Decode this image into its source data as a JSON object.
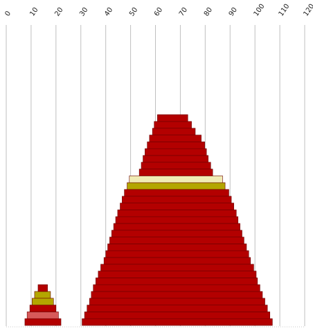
{
  "chart_data": {
    "type": "bar",
    "orientation": "horizontal-stacked-profile",
    "title": "",
    "xlabel": "",
    "ylabel": "",
    "x_ticks": [
      "0",
      "10",
      "20",
      "30",
      "40",
      "50",
      "60",
      "70",
      "80",
      "90",
      "100",
      "110",
      "120"
    ],
    "xlim": [
      0,
      120
    ],
    "grid": true,
    "legend": "none",
    "colors": {
      "red": "#b30000",
      "light_red": "#d75a5a",
      "olive": "#b3a600",
      "cream": "#f0ebb4",
      "edge": "#6a0000",
      "grid": "#bfbfbf"
    },
    "stacks": [
      {
        "name": "",
        "bars": [
          {
            "start": 7.5,
            "end": 22.0,
            "color": "red"
          },
          {
            "start": 8.4,
            "end": 21.0,
            "color": "light_red"
          },
          {
            "start": 9.5,
            "end": 20.0,
            "color": "red"
          },
          {
            "start": 10.4,
            "end": 19.0,
            "color": "olive"
          },
          {
            "start": 11.4,
            "end": 17.8,
            "color": "olive"
          },
          {
            "start": 12.8,
            "end": 16.6,
            "color": "red"
          }
        ]
      },
      {
        "name": "",
        "bars": [
          {
            "start": 30.5,
            "end": 107.0,
            "color": "red"
          },
          {
            "start": 31.5,
            "end": 106.0,
            "color": "red"
          },
          {
            "start": 32.5,
            "end": 105.0,
            "color": "red"
          },
          {
            "start": 33.5,
            "end": 104.0,
            "color": "red"
          },
          {
            "start": 34.2,
            "end": 103.0,
            "color": "red"
          },
          {
            "start": 35.0,
            "end": 102.0,
            "color": "red"
          },
          {
            "start": 36.0,
            "end": 101.0,
            "color": "red"
          },
          {
            "start": 37.0,
            "end": 100.5,
            "color": "red"
          },
          {
            "start": 38.0,
            "end": 99.5,
            "color": "red"
          },
          {
            "start": 39.3,
            "end": 98.2,
            "color": "red"
          },
          {
            "start": 40.0,
            "end": 97.5,
            "color": "red"
          },
          {
            "start": 40.8,
            "end": 96.6,
            "color": "red"
          },
          {
            "start": 41.6,
            "end": 95.6,
            "color": "red"
          },
          {
            "start": 42.4,
            "end": 94.8,
            "color": "red"
          },
          {
            "start": 43.2,
            "end": 94.0,
            "color": "red"
          },
          {
            "start": 44.0,
            "end": 93.2,
            "color": "red"
          },
          {
            "start": 44.8,
            "end": 92.5,
            "color": "red"
          },
          {
            "start": 45.8,
            "end": 91.5,
            "color": "red"
          },
          {
            "start": 46.6,
            "end": 90.5,
            "color": "red"
          },
          {
            "start": 47.5,
            "end": 89.5,
            "color": "red"
          },
          {
            "start": 48.6,
            "end": 88.0,
            "color": "olive"
          },
          {
            "start": 49.5,
            "end": 87.0,
            "color": "cream"
          },
          {
            "start": 53.5,
            "end": 83.0,
            "color": "red"
          },
          {
            "start": 54.3,
            "end": 82.2,
            "color": "red"
          },
          {
            "start": 55.0,
            "end": 81.2,
            "color": "red"
          },
          {
            "start": 55.8,
            "end": 80.5,
            "color": "red"
          },
          {
            "start": 56.7,
            "end": 79.8,
            "color": "red"
          },
          {
            "start": 57.6,
            "end": 78.4,
            "color": "red"
          },
          {
            "start": 58.8,
            "end": 76.0,
            "color": "red"
          },
          {
            "start": 59.5,
            "end": 74.5,
            "color": "red"
          },
          {
            "start": 60.8,
            "end": 73.0,
            "color": "red"
          }
        ]
      }
    ]
  }
}
